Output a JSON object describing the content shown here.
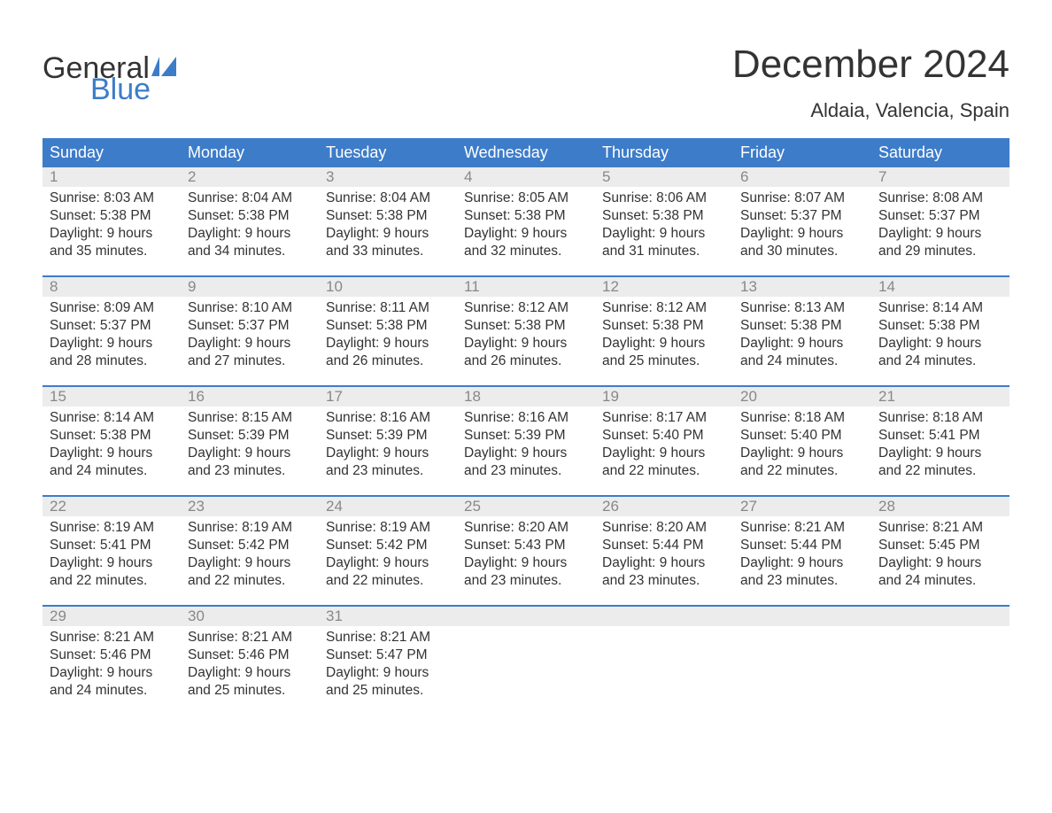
{
  "brand": {
    "part1": "General",
    "part2": "Blue"
  },
  "title": "December 2024",
  "location": "Aldaia, Valencia, Spain",
  "colors": {
    "header_bg": "#3d7cc9",
    "header_text": "#ffffff",
    "daynum_bg": "#ececec",
    "daynum_text": "#888888",
    "body_text": "#333333",
    "brand_blue": "#3d7cc9",
    "page_bg": "#ffffff"
  },
  "typography": {
    "title_fontsize": 44,
    "location_fontsize": 22,
    "dayheader_fontsize": 18,
    "daynum_fontsize": 17,
    "cell_fontsize": 15.5,
    "font_family": "Arial"
  },
  "layout": {
    "columns": 7,
    "rows": 5,
    "row_border_color": "#3d7cc9",
    "row_border_width": 2
  },
  "day_headers": [
    "Sunday",
    "Monday",
    "Tuesday",
    "Wednesday",
    "Thursday",
    "Friday",
    "Saturday"
  ],
  "weeks": [
    [
      {
        "num": "1",
        "sunrise": "Sunrise: 8:03 AM",
        "sunset": "Sunset: 5:38 PM",
        "daylight1": "Daylight: 9 hours",
        "daylight2": "and 35 minutes."
      },
      {
        "num": "2",
        "sunrise": "Sunrise: 8:04 AM",
        "sunset": "Sunset: 5:38 PM",
        "daylight1": "Daylight: 9 hours",
        "daylight2": "and 34 minutes."
      },
      {
        "num": "3",
        "sunrise": "Sunrise: 8:04 AM",
        "sunset": "Sunset: 5:38 PM",
        "daylight1": "Daylight: 9 hours",
        "daylight2": "and 33 minutes."
      },
      {
        "num": "4",
        "sunrise": "Sunrise: 8:05 AM",
        "sunset": "Sunset: 5:38 PM",
        "daylight1": "Daylight: 9 hours",
        "daylight2": "and 32 minutes."
      },
      {
        "num": "5",
        "sunrise": "Sunrise: 8:06 AM",
        "sunset": "Sunset: 5:38 PM",
        "daylight1": "Daylight: 9 hours",
        "daylight2": "and 31 minutes."
      },
      {
        "num": "6",
        "sunrise": "Sunrise: 8:07 AM",
        "sunset": "Sunset: 5:37 PM",
        "daylight1": "Daylight: 9 hours",
        "daylight2": "and 30 minutes."
      },
      {
        "num": "7",
        "sunrise": "Sunrise: 8:08 AM",
        "sunset": "Sunset: 5:37 PM",
        "daylight1": "Daylight: 9 hours",
        "daylight2": "and 29 minutes."
      }
    ],
    [
      {
        "num": "8",
        "sunrise": "Sunrise: 8:09 AM",
        "sunset": "Sunset: 5:37 PM",
        "daylight1": "Daylight: 9 hours",
        "daylight2": "and 28 minutes."
      },
      {
        "num": "9",
        "sunrise": "Sunrise: 8:10 AM",
        "sunset": "Sunset: 5:37 PM",
        "daylight1": "Daylight: 9 hours",
        "daylight2": "and 27 minutes."
      },
      {
        "num": "10",
        "sunrise": "Sunrise: 8:11 AM",
        "sunset": "Sunset: 5:38 PM",
        "daylight1": "Daylight: 9 hours",
        "daylight2": "and 26 minutes."
      },
      {
        "num": "11",
        "sunrise": "Sunrise: 8:12 AM",
        "sunset": "Sunset: 5:38 PM",
        "daylight1": "Daylight: 9 hours",
        "daylight2": "and 26 minutes."
      },
      {
        "num": "12",
        "sunrise": "Sunrise: 8:12 AM",
        "sunset": "Sunset: 5:38 PM",
        "daylight1": "Daylight: 9 hours",
        "daylight2": "and 25 minutes."
      },
      {
        "num": "13",
        "sunrise": "Sunrise: 8:13 AM",
        "sunset": "Sunset: 5:38 PM",
        "daylight1": "Daylight: 9 hours",
        "daylight2": "and 24 minutes."
      },
      {
        "num": "14",
        "sunrise": "Sunrise: 8:14 AM",
        "sunset": "Sunset: 5:38 PM",
        "daylight1": "Daylight: 9 hours",
        "daylight2": "and 24 minutes."
      }
    ],
    [
      {
        "num": "15",
        "sunrise": "Sunrise: 8:14 AM",
        "sunset": "Sunset: 5:38 PM",
        "daylight1": "Daylight: 9 hours",
        "daylight2": "and 24 minutes."
      },
      {
        "num": "16",
        "sunrise": "Sunrise: 8:15 AM",
        "sunset": "Sunset: 5:39 PM",
        "daylight1": "Daylight: 9 hours",
        "daylight2": "and 23 minutes."
      },
      {
        "num": "17",
        "sunrise": "Sunrise: 8:16 AM",
        "sunset": "Sunset: 5:39 PM",
        "daylight1": "Daylight: 9 hours",
        "daylight2": "and 23 minutes."
      },
      {
        "num": "18",
        "sunrise": "Sunrise: 8:16 AM",
        "sunset": "Sunset: 5:39 PM",
        "daylight1": "Daylight: 9 hours",
        "daylight2": "and 23 minutes."
      },
      {
        "num": "19",
        "sunrise": "Sunrise: 8:17 AM",
        "sunset": "Sunset: 5:40 PM",
        "daylight1": "Daylight: 9 hours",
        "daylight2": "and 22 minutes."
      },
      {
        "num": "20",
        "sunrise": "Sunrise: 8:18 AM",
        "sunset": "Sunset: 5:40 PM",
        "daylight1": "Daylight: 9 hours",
        "daylight2": "and 22 minutes."
      },
      {
        "num": "21",
        "sunrise": "Sunrise: 8:18 AM",
        "sunset": "Sunset: 5:41 PM",
        "daylight1": "Daylight: 9 hours",
        "daylight2": "and 22 minutes."
      }
    ],
    [
      {
        "num": "22",
        "sunrise": "Sunrise: 8:19 AM",
        "sunset": "Sunset: 5:41 PM",
        "daylight1": "Daylight: 9 hours",
        "daylight2": "and 22 minutes."
      },
      {
        "num": "23",
        "sunrise": "Sunrise: 8:19 AM",
        "sunset": "Sunset: 5:42 PM",
        "daylight1": "Daylight: 9 hours",
        "daylight2": "and 22 minutes."
      },
      {
        "num": "24",
        "sunrise": "Sunrise: 8:19 AM",
        "sunset": "Sunset: 5:42 PM",
        "daylight1": "Daylight: 9 hours",
        "daylight2": "and 22 minutes."
      },
      {
        "num": "25",
        "sunrise": "Sunrise: 8:20 AM",
        "sunset": "Sunset: 5:43 PM",
        "daylight1": "Daylight: 9 hours",
        "daylight2": "and 23 minutes."
      },
      {
        "num": "26",
        "sunrise": "Sunrise: 8:20 AM",
        "sunset": "Sunset: 5:44 PM",
        "daylight1": "Daylight: 9 hours",
        "daylight2": "and 23 minutes."
      },
      {
        "num": "27",
        "sunrise": "Sunrise: 8:21 AM",
        "sunset": "Sunset: 5:44 PM",
        "daylight1": "Daylight: 9 hours",
        "daylight2": "and 23 minutes."
      },
      {
        "num": "28",
        "sunrise": "Sunrise: 8:21 AM",
        "sunset": "Sunset: 5:45 PM",
        "daylight1": "Daylight: 9 hours",
        "daylight2": "and 24 minutes."
      }
    ],
    [
      {
        "num": "29",
        "sunrise": "Sunrise: 8:21 AM",
        "sunset": "Sunset: 5:46 PM",
        "daylight1": "Daylight: 9 hours",
        "daylight2": "and 24 minutes."
      },
      {
        "num": "30",
        "sunrise": "Sunrise: 8:21 AM",
        "sunset": "Sunset: 5:46 PM",
        "daylight1": "Daylight: 9 hours",
        "daylight2": "and 25 minutes."
      },
      {
        "num": "31",
        "sunrise": "Sunrise: 8:21 AM",
        "sunset": "Sunset: 5:47 PM",
        "daylight1": "Daylight: 9 hours",
        "daylight2": "and 25 minutes."
      },
      {
        "num": "",
        "sunrise": "",
        "sunset": "",
        "daylight1": "",
        "daylight2": ""
      },
      {
        "num": "",
        "sunrise": "",
        "sunset": "",
        "daylight1": "",
        "daylight2": ""
      },
      {
        "num": "",
        "sunrise": "",
        "sunset": "",
        "daylight1": "",
        "daylight2": ""
      },
      {
        "num": "",
        "sunrise": "",
        "sunset": "",
        "daylight1": "",
        "daylight2": ""
      }
    ]
  ]
}
